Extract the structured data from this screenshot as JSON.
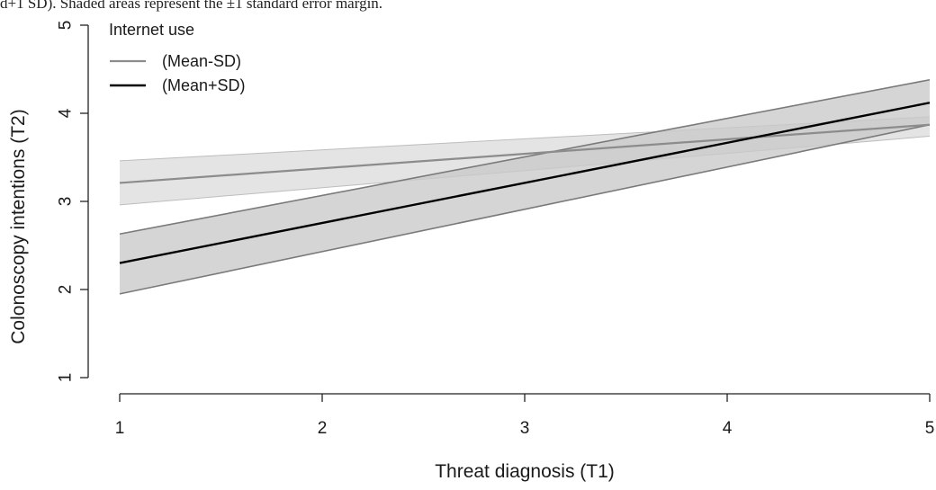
{
  "caption_fragment": "d+1 SD). Shaded areas represent the ±1 standard error margin.",
  "chart_data": {
    "type": "line",
    "xlabel": "Threat diagnosis (T1)",
    "ylabel": "Colonoscopy intentions (T2)",
    "xlim": [
      1,
      5
    ],
    "ylim": [
      1,
      5
    ],
    "x_ticks": [
      1,
      2,
      3,
      4,
      5
    ],
    "y_ticks": [
      1,
      2,
      3,
      4,
      5
    ],
    "grid": false,
    "legend": {
      "title": "Internet use",
      "placement": "top-left"
    },
    "series": [
      {
        "name": "(Mean-SD)",
        "color": "#8c8c8c",
        "band_color": "#e3e3e3",
        "x": [
          1,
          5
        ],
        "y": [
          3.21,
          3.87
        ],
        "lower": [
          2.96,
          3.74
        ],
        "upper": [
          3.46,
          3.96
        ]
      },
      {
        "name": "(Mean+SD)",
        "color": "#000000",
        "band_color": "#c9c9c9",
        "band_edge_color": "#7a7a7a",
        "x": [
          1,
          5
        ],
        "y": [
          2.3,
          4.12
        ],
        "lower": [
          1.95,
          3.87
        ],
        "upper": [
          2.63,
          4.38
        ]
      }
    ]
  }
}
